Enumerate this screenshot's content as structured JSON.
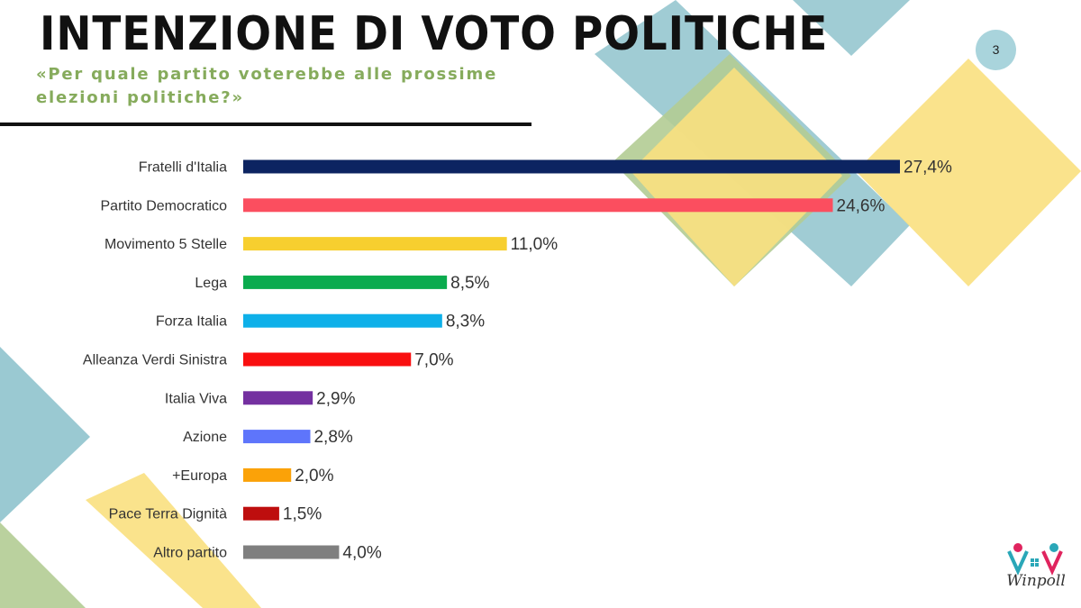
{
  "header": {
    "title": "INTENZIONE DI VOTO POLITICHE",
    "subtitle": "«Per quale partito voterebbe alle prossime elezioni politiche?»",
    "page_number": "3"
  },
  "logo": {
    "text": "Winpoll"
  },
  "colors": {
    "teal": "#8fc3cd",
    "yellow": "#f9e07f",
    "green": "#b3cc94"
  },
  "chart_data": {
    "type": "bar",
    "orientation": "horizontal",
    "title": "",
    "xlabel": "",
    "ylabel": "",
    "xlim": [
      0,
      30
    ],
    "grid": false,
    "legend": "none",
    "categories": [
      "Fratelli d'Italia",
      "Partito Democratico",
      "Movimento 5 Stelle",
      "Lega",
      "Forza Italia",
      "Alleanza Verdi Sinistra",
      "Italia Viva",
      "Azione",
      "+Europa",
      "Pace Terra Dignità",
      "Altro partito"
    ],
    "values": [
      27.4,
      24.6,
      11.0,
      8.5,
      8.3,
      7.0,
      2.9,
      2.8,
      2.0,
      1.5,
      4.0
    ],
    "value_labels": [
      "27,4%",
      "24,6%",
      "11,0%",
      "8,5%",
      "8,3%",
      "7,0%",
      "2,9%",
      "2,8%",
      "2,0%",
      "1,5%",
      "4,0%"
    ],
    "bar_colors": [
      "#0c2461",
      "#fb4e5f",
      "#f7cf2f",
      "#0aab4e",
      "#0eb0e9",
      "#f90f10",
      "#7430a0",
      "#5e75fb",
      "#fba208",
      "#be0e0e",
      "#7f7f7f"
    ]
  }
}
